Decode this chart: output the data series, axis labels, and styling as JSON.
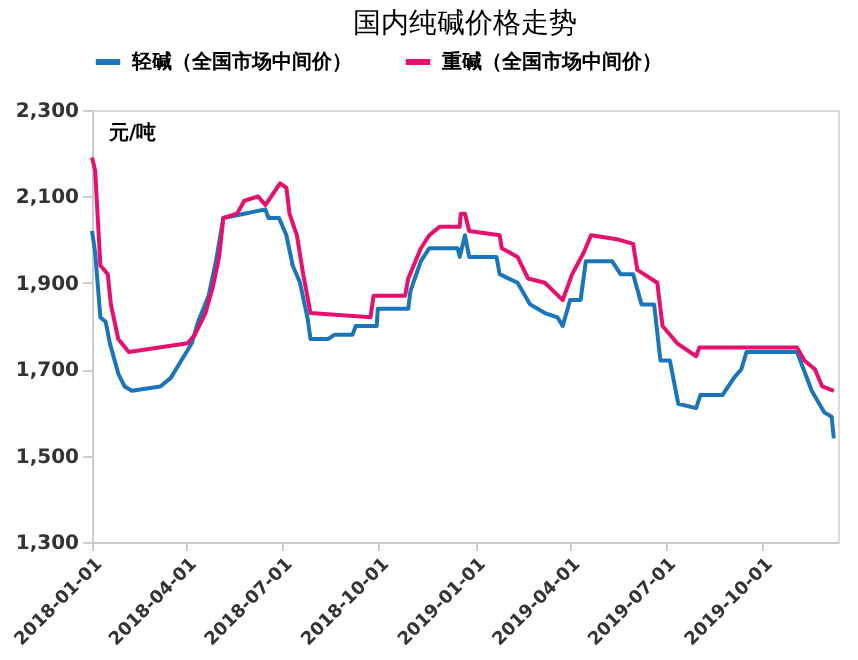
{
  "chart_data": {
    "type": "line",
    "title": "国内纯碱价格走势",
    "ylabel": "元/吨",
    "ylim": [
      1300,
      2300
    ],
    "yticks": [
      {
        "value": 1300,
        "label": "1,300"
      },
      {
        "value": 1500,
        "label": "1,500"
      },
      {
        "value": 1700,
        "label": "1,700"
      },
      {
        "value": 1900,
        "label": "1,900"
      },
      {
        "value": 2100,
        "label": "2,100"
      },
      {
        "value": 2300,
        "label": "2,300"
      }
    ],
    "xlim": [
      "2018-01-01",
      "2019-12-12"
    ],
    "xticks": [
      "2018-01-01",
      "2018-04-01",
      "2018-07-01",
      "2018-10-01",
      "2019-01-01",
      "2019-04-01",
      "2019-07-01",
      "2019-10-01"
    ],
    "grid": false,
    "legend": "top",
    "marker": "none",
    "line_style": "solid",
    "series": [
      {
        "name": "轻碱（全国市场中间价）",
        "color": "#1a75bb",
        "x": [
          "2018-01-01",
          "2018-01-04",
          "2018-01-09",
          "2018-01-14",
          "2018-01-18",
          "2018-01-26",
          "2018-02-01",
          "2018-02-08",
          "2018-03-07",
          "2018-03-17",
          "2018-03-27",
          "2018-04-06",
          "2018-04-12",
          "2018-04-22",
          "2018-04-29",
          "2018-05-06",
          "2018-05-26",
          "2018-06-15",
          "2018-06-18",
          "2018-06-28",
          "2018-07-05",
          "2018-07-11",
          "2018-07-18",
          "2018-07-25",
          "2018-07-28",
          "2018-08-14",
          "2018-08-20",
          "2018-09-06",
          "2018-09-09",
          "2018-09-29",
          "2018-09-30",
          "2018-10-29",
          "2018-10-31",
          "2018-11-10",
          "2018-11-18",
          "2018-12-15",
          "2018-12-17",
          "2018-12-22",
          "2018-12-26",
          "2019-01-21",
          "2019-01-24",
          "2019-02-10",
          "2019-02-22",
          "2019-03-08",
          "2019-03-20",
          "2019-03-25",
          "2019-04-01",
          "2019-04-11",
          "2019-04-16",
          "2019-05-11",
          "2019-05-19",
          "2019-05-31",
          "2019-06-08",
          "2019-06-20",
          "2019-06-26",
          "2019-07-05",
          "2019-07-13",
          "2019-07-30",
          "2019-08-03",
          "2019-08-24",
          "2019-09-04",
          "2019-09-11",
          "2019-09-16",
          "2019-11-03",
          "2019-11-17",
          "2019-11-29",
          "2019-12-06",
          "2019-12-08"
        ],
        "values": [
          2020,
          1970,
          1820,
          1810,
          1760,
          1690,
          1660,
          1650,
          1660,
          1680,
          1720,
          1760,
          1810,
          1870,
          1950,
          2050,
          2060,
          2070,
          2050,
          2050,
          2010,
          1940,
          1900,
          1820,
          1770,
          1770,
          1780,
          1780,
          1800,
          1800,
          1840,
          1840,
          1880,
          1950,
          1980,
          1980,
          1960,
          2010,
          1960,
          1960,
          1920,
          1900,
          1850,
          1830,
          1820,
          1800,
          1860,
          1860,
          1950,
          1950,
          1920,
          1920,
          1850,
          1850,
          1720,
          1720,
          1620,
          1610,
          1640,
          1640,
          1680,
          1700,
          1740,
          1740,
          1650,
          1600,
          1590,
          1540
        ]
      },
      {
        "name": "重碱（全国市场中间价）",
        "color": "#e6106e",
        "x": [
          "2018-01-01",
          "2018-01-04",
          "2018-01-09",
          "2018-01-16",
          "2018-01-19",
          "2018-01-26",
          "2018-02-05",
          "2018-04-02",
          "2018-04-09",
          "2018-04-19",
          "2018-04-26",
          "2018-05-02",
          "2018-05-06",
          "2018-05-19",
          "2018-05-26",
          "2018-06-08",
          "2018-06-15",
          "2018-06-29",
          "2018-07-05",
          "2018-07-08",
          "2018-07-15",
          "2018-07-21",
          "2018-07-28",
          "2018-09-23",
          "2018-09-26",
          "2018-10-26",
          "2018-10-29",
          "2018-11-10",
          "2018-11-18",
          "2018-11-28",
          "2018-12-17",
          "2018-12-18",
          "2018-12-22",
          "2018-12-26",
          "2019-01-24",
          "2019-01-26",
          "2019-02-10",
          "2019-02-20",
          "2019-03-08",
          "2019-03-25",
          "2019-04-03",
          "2019-04-14",
          "2019-04-21",
          "2019-05-17",
          "2019-05-31",
          "2019-06-04",
          "2019-06-23",
          "2019-06-28",
          "2019-07-12",
          "2019-07-30",
          "2019-08-02",
          "2019-11-03",
          "2019-11-10",
          "2019-11-20",
          "2019-11-27",
          "2019-12-08"
        ],
        "values": [
          2190,
          2160,
          1940,
          1920,
          1850,
          1770,
          1740,
          1760,
          1780,
          1830,
          1890,
          1960,
          2050,
          2060,
          2090,
          2100,
          2080,
          2130,
          2120,
          2060,
          2010,
          1920,
          1830,
          1820,
          1870,
          1870,
          1910,
          1980,
          2010,
          2030,
          2030,
          2060,
          2060,
          2020,
          2010,
          1980,
          1960,
          1910,
          1900,
          1860,
          1920,
          1970,
          2010,
          2000,
          1990,
          1930,
          1900,
          1800,
          1760,
          1730,
          1750,
          1750,
          1720,
          1700,
          1660,
          1650
        ]
      }
    ]
  }
}
